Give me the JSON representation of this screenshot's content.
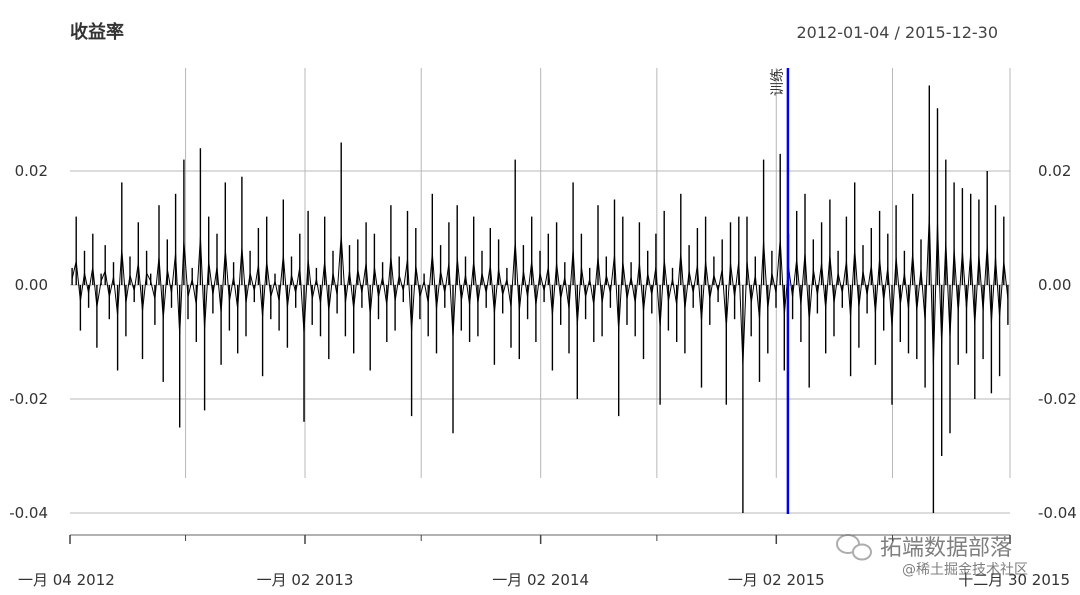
{
  "chart_data": {
    "type": "line",
    "title": "收益率",
    "date_range": "2012-01-04 / 2015-12-30",
    "x_start": "2012-01-04",
    "x_end": "2015-12-30",
    "x_tick_labels": [
      "一月 04 2012",
      "一月 02 2013",
      "一月 02 2014",
      "一月 02 2015",
      "十二月 30 2015"
    ],
    "y_ticks": [
      0.02,
      0.0,
      -0.02,
      -0.04
    ],
    "y_tick_labels": [
      "0.02",
      "0.00",
      "-0.02",
      "-0.04"
    ],
    "ylim": [
      -0.04,
      0.035
    ],
    "grid": true,
    "line_color": "#000000",
    "event_line": {
      "label": "训练",
      "date": "2015-01-20",
      "color": "#0000ee"
    },
    "series": [
      {
        "values": [
          0.003,
          0.012,
          -0.008,
          0.006,
          -0.004,
          0.009,
          -0.011,
          0.002,
          0.007,
          -0.006,
          0.004,
          -0.015,
          0.018,
          -0.009,
          0.005,
          -0.003,
          0.011,
          -0.013,
          0.006,
          0.002,
          -0.007,
          0.014,
          -0.017,
          0.008,
          -0.004,
          0.016,
          -0.025,
          0.022,
          -0.006,
          0.003,
          -0.01,
          0.024,
          -0.022,
          0.012,
          -0.005,
          0.009,
          -0.014,
          0.018,
          -0.008,
          0.004,
          -0.012,
          0.019,
          -0.009,
          0.006,
          -0.003,
          0.01,
          -0.016,
          0.012,
          -0.006,
          0.002,
          -0.008,
          0.015,
          -0.011,
          0.005,
          -0.004,
          0.009,
          -0.024,
          0.013,
          -0.007,
          0.003,
          -0.009,
          0.012,
          -0.013,
          0.006,
          -0.005,
          0.025,
          -0.009,
          0.007,
          -0.012,
          0.008,
          -0.004,
          0.011,
          -0.015,
          0.009,
          -0.006,
          0.004,
          -0.01,
          0.014,
          -0.008,
          0.005,
          -0.003,
          0.013,
          -0.023,
          0.01,
          -0.006,
          0.002,
          -0.009,
          0.016,
          -0.012,
          0.007,
          -0.004,
          0.011,
          -0.026,
          0.014,
          -0.008,
          0.005,
          -0.01,
          0.012,
          -0.009,
          0.006,
          -0.004,
          0.01,
          -0.014,
          0.008,
          -0.005,
          0.003,
          -0.011,
          0.022,
          -0.013,
          0.007,
          -0.006,
          0.012,
          -0.01,
          0.006,
          -0.003,
          0.009,
          -0.015,
          0.011,
          -0.007,
          0.004,
          -0.012,
          0.018,
          -0.02,
          0.009,
          -0.006,
          0.003,
          -0.01,
          0.014,
          -0.009,
          0.005,
          -0.004,
          0.015,
          -0.023,
          0.012,
          -0.007,
          0.004,
          -0.009,
          0.011,
          -0.013,
          0.006,
          -0.005,
          0.009,
          -0.021,
          0.013,
          -0.008,
          0.003,
          -0.01,
          0.016,
          -0.012,
          0.007,
          -0.004,
          0.01,
          -0.018,
          0.012,
          -0.007,
          0.005,
          -0.003,
          0.008,
          -0.021,
          0.011,
          -0.006,
          0.012,
          -0.04,
          0.012,
          -0.009,
          0.005,
          -0.017,
          0.022,
          -0.012,
          0.006,
          -0.004,
          0.023,
          -0.015,
          0.009,
          -0.006,
          0.013,
          -0.01,
          0.016,
          -0.018,
          0.008,
          -0.005,
          0.011,
          -0.012,
          0.015,
          -0.009,
          0.006,
          -0.004,
          0.012,
          -0.016,
          0.018,
          -0.011,
          0.007,
          -0.005,
          0.01,
          -0.014,
          0.013,
          -0.008,
          0.009,
          -0.021,
          0.014,
          -0.01,
          0.006,
          -0.012,
          0.016,
          -0.013,
          0.008,
          -0.018,
          0.035,
          -0.04,
          0.031,
          -0.03,
          0.022,
          -0.026,
          0.018,
          -0.014,
          0.017,
          -0.012,
          0.016,
          -0.02,
          0.015,
          -0.013,
          0.02,
          -0.019,
          0.014,
          -0.016,
          0.012,
          -0.007
        ]
      }
    ]
  },
  "watermark": {
    "line1": "拓端数据部落",
    "line2": "@稀土掘金技术社区"
  }
}
